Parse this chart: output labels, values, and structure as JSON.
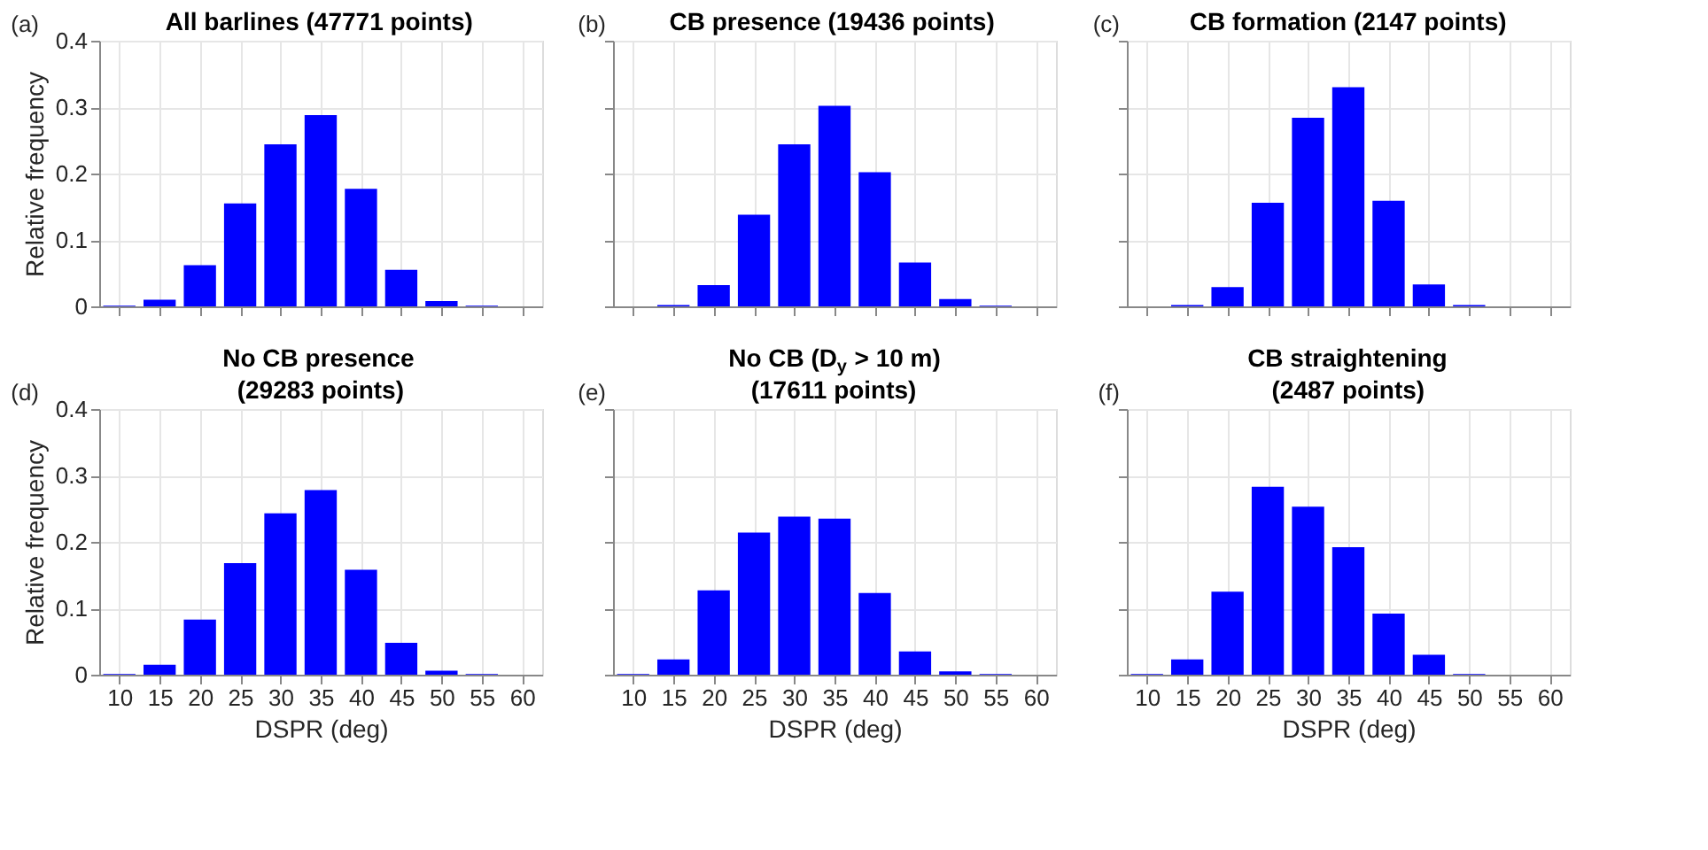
{
  "chart_data": [
    {
      "type": "bar",
      "title": "All barlines (47771 points)",
      "ylabel": "Relative frequency",
      "annotations": [
        "(a)"
      ],
      "x": [
        10,
        15,
        20,
        25,
        30,
        35,
        40,
        45,
        50,
        55
      ],
      "values": [
        0.001,
        0.01,
        0.062,
        0.155,
        0.244,
        0.288,
        0.177,
        0.055,
        0.008,
        0.001
      ],
      "color": "#0000ff",
      "xlim": [
        7.5,
        62.5
      ],
      "ylim": [
        0,
        0.4
      ],
      "xticks": [
        10,
        15,
        20,
        25,
        30,
        35,
        40,
        45,
        50,
        55,
        60
      ],
      "yticks": [
        0,
        0.1,
        0.2,
        0.3,
        0.4
      ],
      "grid": true,
      "tick_labels": "y"
    },
    {
      "type": "bar",
      "title": "CB presence (19436 points)",
      "annotations": [
        "(b)"
      ],
      "x": [
        10,
        15,
        20,
        25,
        30,
        35,
        40,
        45,
        50,
        55
      ],
      "values": [
        0,
        0.002,
        0.032,
        0.138,
        0.244,
        0.302,
        0.202,
        0.066,
        0.011,
        0.001
      ],
      "color": "#0000ff",
      "xlim": [
        7.5,
        62.5
      ],
      "ylim": [
        0,
        0.4
      ],
      "xticks": [
        10,
        15,
        20,
        25,
        30,
        35,
        40,
        45,
        50,
        55,
        60
      ],
      "yticks": [
        0,
        0.1,
        0.2,
        0.3,
        0.4
      ],
      "grid": true,
      "tick_labels": false
    },
    {
      "type": "bar",
      "title": "CB formation (2147 points)",
      "annotations": [
        "(c)"
      ],
      "x": [
        10,
        15,
        20,
        25,
        30,
        35,
        40,
        45,
        50,
        55
      ],
      "values": [
        0,
        0.002,
        0.029,
        0.156,
        0.284,
        0.33,
        0.159,
        0.033,
        0.002,
        0
      ],
      "color": "#0000ff",
      "xlim": [
        7.5,
        62.5
      ],
      "ylim": [
        0,
        0.4
      ],
      "xticks": [
        10,
        15,
        20,
        25,
        30,
        35,
        40,
        45,
        50,
        55,
        60
      ],
      "yticks": [
        0,
        0.1,
        0.2,
        0.3,
        0.4
      ],
      "grid": true,
      "tick_labels": false
    },
    {
      "type": "bar",
      "title": "No CB presence\n(29283 points)",
      "xlabel": "DSPR (deg)",
      "ylabel": "Relative frequency",
      "annotations": [
        "(d)"
      ],
      "x": [
        10,
        15,
        20,
        25,
        30,
        35,
        40,
        45,
        50,
        55
      ],
      "values": [
        0.001,
        0.015,
        0.083,
        0.168,
        0.243,
        0.278,
        0.158,
        0.048,
        0.006,
        0.001
      ],
      "color": "#0000ff",
      "xlim": [
        7.5,
        62.5
      ],
      "ylim": [
        0,
        0.4
      ],
      "xticks": [
        10,
        15,
        20,
        25,
        30,
        35,
        40,
        45,
        50,
        55,
        60
      ],
      "yticks": [
        0,
        0.1,
        0.2,
        0.3,
        0.4
      ],
      "grid": true
    },
    {
      "type": "bar",
      "title": "No CB (D$_{y}$ > 10 m)\n(17611 points)",
      "xlabel": "DSPR (deg)",
      "annotations": [
        "(e)"
      ],
      "x": [
        10,
        15,
        20,
        25,
        30,
        35,
        40,
        45,
        50,
        55
      ],
      "values": [
        0.001,
        0.023,
        0.127,
        0.214,
        0.238,
        0.235,
        0.123,
        0.035,
        0.005,
        0.001
      ],
      "color": "#0000ff",
      "xlim": [
        7.5,
        62.5
      ],
      "ylim": [
        0,
        0.4
      ],
      "xticks": [
        10,
        15,
        20,
        25,
        30,
        35,
        40,
        45,
        50,
        55,
        60
      ],
      "yticks": [
        0,
        0.1,
        0.2,
        0.3,
        0.4
      ],
      "grid": true,
      "tick_labels": "x"
    },
    {
      "type": "bar",
      "title": "CB straightening\n(2487 points)",
      "xlabel": "DSPR (deg)",
      "annotations": [
        "(f)"
      ],
      "x": [
        10,
        15,
        20,
        25,
        30,
        35,
        40,
        45,
        50,
        55
      ],
      "values": [
        0.001,
        0.023,
        0.125,
        0.283,
        0.253,
        0.192,
        0.092,
        0.03,
        0.001,
        0
      ],
      "color": "#0000ff",
      "xlim": [
        7.5,
        62.5
      ],
      "ylim": [
        0,
        0.4
      ],
      "xticks": [
        10,
        15,
        20,
        25,
        30,
        35,
        40,
        45,
        50,
        55,
        60
      ],
      "yticks": [
        0,
        0.1,
        0.2,
        0.3,
        0.4
      ],
      "grid": true,
      "tick_labels": "x"
    }
  ]
}
